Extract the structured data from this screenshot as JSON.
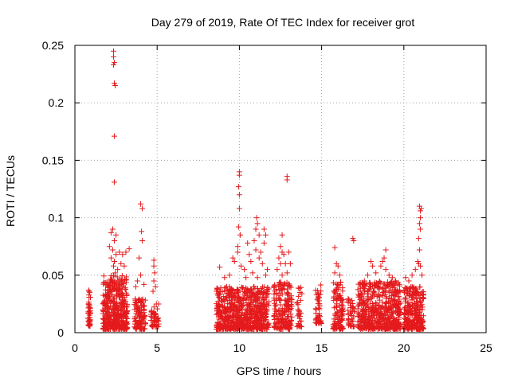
{
  "chart_data": {
    "type": "scatter",
    "title": "Day 279 of 2019, Rate Of TEC Index for receiver grot",
    "xlabel": "GPS time / hours",
    "ylabel": "ROTI / TECUs",
    "xlim": [
      0,
      25
    ],
    "ylim": [
      0,
      0.25
    ],
    "xticks": [
      0,
      5,
      10,
      15,
      20,
      25
    ],
    "yticks": [
      0,
      0.05,
      0.1,
      0.15,
      0.2,
      0.25
    ],
    "xtick_labels": [
      "0",
      "5",
      "10",
      "15",
      "20",
      "25"
    ],
    "ytick_labels": [
      "0",
      "0.05",
      "0.1",
      "0.15",
      "0.2",
      "0.25"
    ],
    "grid": true,
    "marker": "+",
    "color": "#e41a1c",
    "series": [
      {
        "name": "ROTI",
        "clusters": [
          {
            "x": [
              0.8,
              0.95
            ],
            "y": [
              0.005,
              0.038
            ],
            "n": 45
          },
          {
            "x": [
              1.7,
              3.2
            ],
            "y": [
              0.003,
              0.05
            ],
            "n": 420
          },
          {
            "x": [
              3.6,
              4.3
            ],
            "y": [
              0.003,
              0.03
            ],
            "n": 110
          },
          {
            "x": [
              4.6,
              5.1
            ],
            "y": [
              0.005,
              0.025
            ],
            "n": 45
          },
          {
            "x": [
              8.6,
              11.8
            ],
            "y": [
              0.003,
              0.04
            ],
            "n": 720
          },
          {
            "x": [
              12.1,
              13.2
            ],
            "y": [
              0.003,
              0.045
            ],
            "n": 200
          },
          {
            "x": [
              13.5,
              13.8
            ],
            "y": [
              0.005,
              0.04
            ],
            "n": 30
          },
          {
            "x": [
              14.6,
              15.0
            ],
            "y": [
              0.008,
              0.042
            ],
            "n": 45
          },
          {
            "x": [
              15.7,
              16.3
            ],
            "y": [
              0.003,
              0.045
            ],
            "n": 110
          },
          {
            "x": [
              16.6,
              17.0
            ],
            "y": [
              0.005,
              0.03
            ],
            "n": 40
          },
          {
            "x": [
              17.2,
              19.8
            ],
            "y": [
              0.003,
              0.045
            ],
            "n": 550
          },
          {
            "x": [
              20.0,
              21.2
            ],
            "y": [
              0.003,
              0.04
            ],
            "n": 280
          }
        ],
        "outliers": [
          {
            "x": 2.35,
            "y": 0.245
          },
          {
            "x": 2.35,
            "y": 0.24
          },
          {
            "x": 2.4,
            "y": 0.235
          },
          {
            "x": 2.35,
            "y": 0.233
          },
          {
            "x": 2.4,
            "y": 0.217
          },
          {
            "x": 2.45,
            "y": 0.215
          },
          {
            "x": 2.4,
            "y": 0.171
          },
          {
            "x": 2.4,
            "y": 0.131
          },
          {
            "x": 2.3,
            "y": 0.09
          },
          {
            "x": 2.2,
            "y": 0.087
          },
          {
            "x": 2.5,
            "y": 0.085
          },
          {
            "x": 2.4,
            "y": 0.08
          },
          {
            "x": 2.1,
            "y": 0.075
          },
          {
            "x": 2.3,
            "y": 0.072
          },
          {
            "x": 2.5,
            "y": 0.068
          },
          {
            "x": 2.2,
            "y": 0.065
          },
          {
            "x": 2.4,
            "y": 0.062
          },
          {
            "x": 2.35,
            "y": 0.058
          },
          {
            "x": 2.6,
            "y": 0.055
          },
          {
            "x": 2.45,
            "y": 0.052
          },
          {
            "x": 2.7,
            "y": 0.07
          },
          {
            "x": 2.9,
            "y": 0.068
          },
          {
            "x": 3.1,
            "y": 0.07
          },
          {
            "x": 2.8,
            "y": 0.06
          },
          {
            "x": 3.0,
            "y": 0.058
          },
          {
            "x": 3.3,
            "y": 0.073
          },
          {
            "x": 4.0,
            "y": 0.112
          },
          {
            "x": 4.1,
            "y": 0.108
          },
          {
            "x": 4.05,
            "y": 0.088
          },
          {
            "x": 4.1,
            "y": 0.08
          },
          {
            "x": 3.9,
            "y": 0.065
          },
          {
            "x": 4.0,
            "y": 0.05
          },
          {
            "x": 3.8,
            "y": 0.045
          },
          {
            "x": 3.7,
            "y": 0.04
          },
          {
            "x": 4.2,
            "y": 0.042
          },
          {
            "x": 4.8,
            "y": 0.063
          },
          {
            "x": 4.8,
            "y": 0.058
          },
          {
            "x": 4.85,
            "y": 0.052
          },
          {
            "x": 4.8,
            "y": 0.045
          },
          {
            "x": 4.9,
            "y": 0.04
          },
          {
            "x": 4.75,
            "y": 0.036
          },
          {
            "x": 8.8,
            "y": 0.057
          },
          {
            "x": 9.1,
            "y": 0.048
          },
          {
            "x": 9.4,
            "y": 0.05
          },
          {
            "x": 9.7,
            "y": 0.062
          },
          {
            "x": 9.9,
            "y": 0.07
          },
          {
            "x": 9.6,
            "y": 0.065
          },
          {
            "x": 10.0,
            "y": 0.14
          },
          {
            "x": 10.0,
            "y": 0.137
          },
          {
            "x": 9.95,
            "y": 0.127
          },
          {
            "x": 10.0,
            "y": 0.12
          },
          {
            "x": 10.0,
            "y": 0.108
          },
          {
            "x": 9.95,
            "y": 0.092
          },
          {
            "x": 10.05,
            "y": 0.085
          },
          {
            "x": 9.9,
            "y": 0.075
          },
          {
            "x": 10.1,
            "y": 0.058
          },
          {
            "x": 10.3,
            "y": 0.055
          },
          {
            "x": 10.5,
            "y": 0.078
          },
          {
            "x": 10.6,
            "y": 0.068
          },
          {
            "x": 10.7,
            "y": 0.062
          },
          {
            "x": 10.4,
            "y": 0.048
          },
          {
            "x": 10.9,
            "y": 0.08
          },
          {
            "x": 11.0,
            "y": 0.09
          },
          {
            "x": 11.05,
            "y": 0.1
          },
          {
            "x": 11.1,
            "y": 0.095
          },
          {
            "x": 11.2,
            "y": 0.085
          },
          {
            "x": 11.0,
            "y": 0.072
          },
          {
            "x": 11.3,
            "y": 0.07
          },
          {
            "x": 11.2,
            "y": 0.065
          },
          {
            "x": 11.5,
            "y": 0.09
          },
          {
            "x": 11.6,
            "y": 0.085
          },
          {
            "x": 11.5,
            "y": 0.078
          },
          {
            "x": 11.4,
            "y": 0.06
          },
          {
            "x": 11.7,
            "y": 0.055
          },
          {
            "x": 11.6,
            "y": 0.05
          },
          {
            "x": 10.8,
            "y": 0.052
          },
          {
            "x": 11.1,
            "y": 0.048
          },
          {
            "x": 12.5,
            "y": 0.075
          },
          {
            "x": 12.6,
            "y": 0.085
          },
          {
            "x": 12.6,
            "y": 0.07
          },
          {
            "x": 12.4,
            "y": 0.065
          },
          {
            "x": 12.7,
            "y": 0.068
          },
          {
            "x": 12.5,
            "y": 0.06
          },
          {
            "x": 12.3,
            "y": 0.055
          },
          {
            "x": 12.8,
            "y": 0.06
          },
          {
            "x": 12.6,
            "y": 0.05
          },
          {
            "x": 12.9,
            "y": 0.136
          },
          {
            "x": 12.9,
            "y": 0.133
          },
          {
            "x": 13.0,
            "y": 0.07
          },
          {
            "x": 13.1,
            "y": 0.06
          },
          {
            "x": 12.9,
            "y": 0.052
          },
          {
            "x": 15.8,
            "y": 0.074
          },
          {
            "x": 15.9,
            "y": 0.06
          },
          {
            "x": 16.0,
            "y": 0.058
          },
          {
            "x": 15.8,
            "y": 0.052
          },
          {
            "x": 16.1,
            "y": 0.05
          },
          {
            "x": 16.9,
            "y": 0.082
          },
          {
            "x": 16.95,
            "y": 0.08
          },
          {
            "x": 17.6,
            "y": 0.045
          },
          {
            "x": 17.8,
            "y": 0.05
          },
          {
            "x": 18.0,
            "y": 0.062
          },
          {
            "x": 18.1,
            "y": 0.058
          },
          {
            "x": 18.3,
            "y": 0.052
          },
          {
            "x": 18.6,
            "y": 0.058
          },
          {
            "x": 18.8,
            "y": 0.065
          },
          {
            "x": 18.9,
            "y": 0.072
          },
          {
            "x": 18.7,
            "y": 0.062
          },
          {
            "x": 18.9,
            "y": 0.055
          },
          {
            "x": 19.1,
            "y": 0.05
          },
          {
            "x": 19.3,
            "y": 0.048
          },
          {
            "x": 20.1,
            "y": 0.048
          },
          {
            "x": 20.3,
            "y": 0.045
          },
          {
            "x": 20.5,
            "y": 0.05
          },
          {
            "x": 20.7,
            "y": 0.055
          },
          {
            "x": 20.85,
            "y": 0.062
          },
          {
            "x": 20.9,
            "y": 0.06
          },
          {
            "x": 20.95,
            "y": 0.072
          },
          {
            "x": 20.9,
            "y": 0.082
          },
          {
            "x": 21.0,
            "y": 0.09
          },
          {
            "x": 20.95,
            "y": 0.095
          },
          {
            "x": 21.0,
            "y": 0.1
          },
          {
            "x": 21.0,
            "y": 0.106
          },
          {
            "x": 20.95,
            "y": 0.11
          },
          {
            "x": 21.05,
            "y": 0.108
          },
          {
            "x": 21.0,
            "y": 0.058
          },
          {
            "x": 21.1,
            "y": 0.05
          }
        ]
      }
    ]
  }
}
